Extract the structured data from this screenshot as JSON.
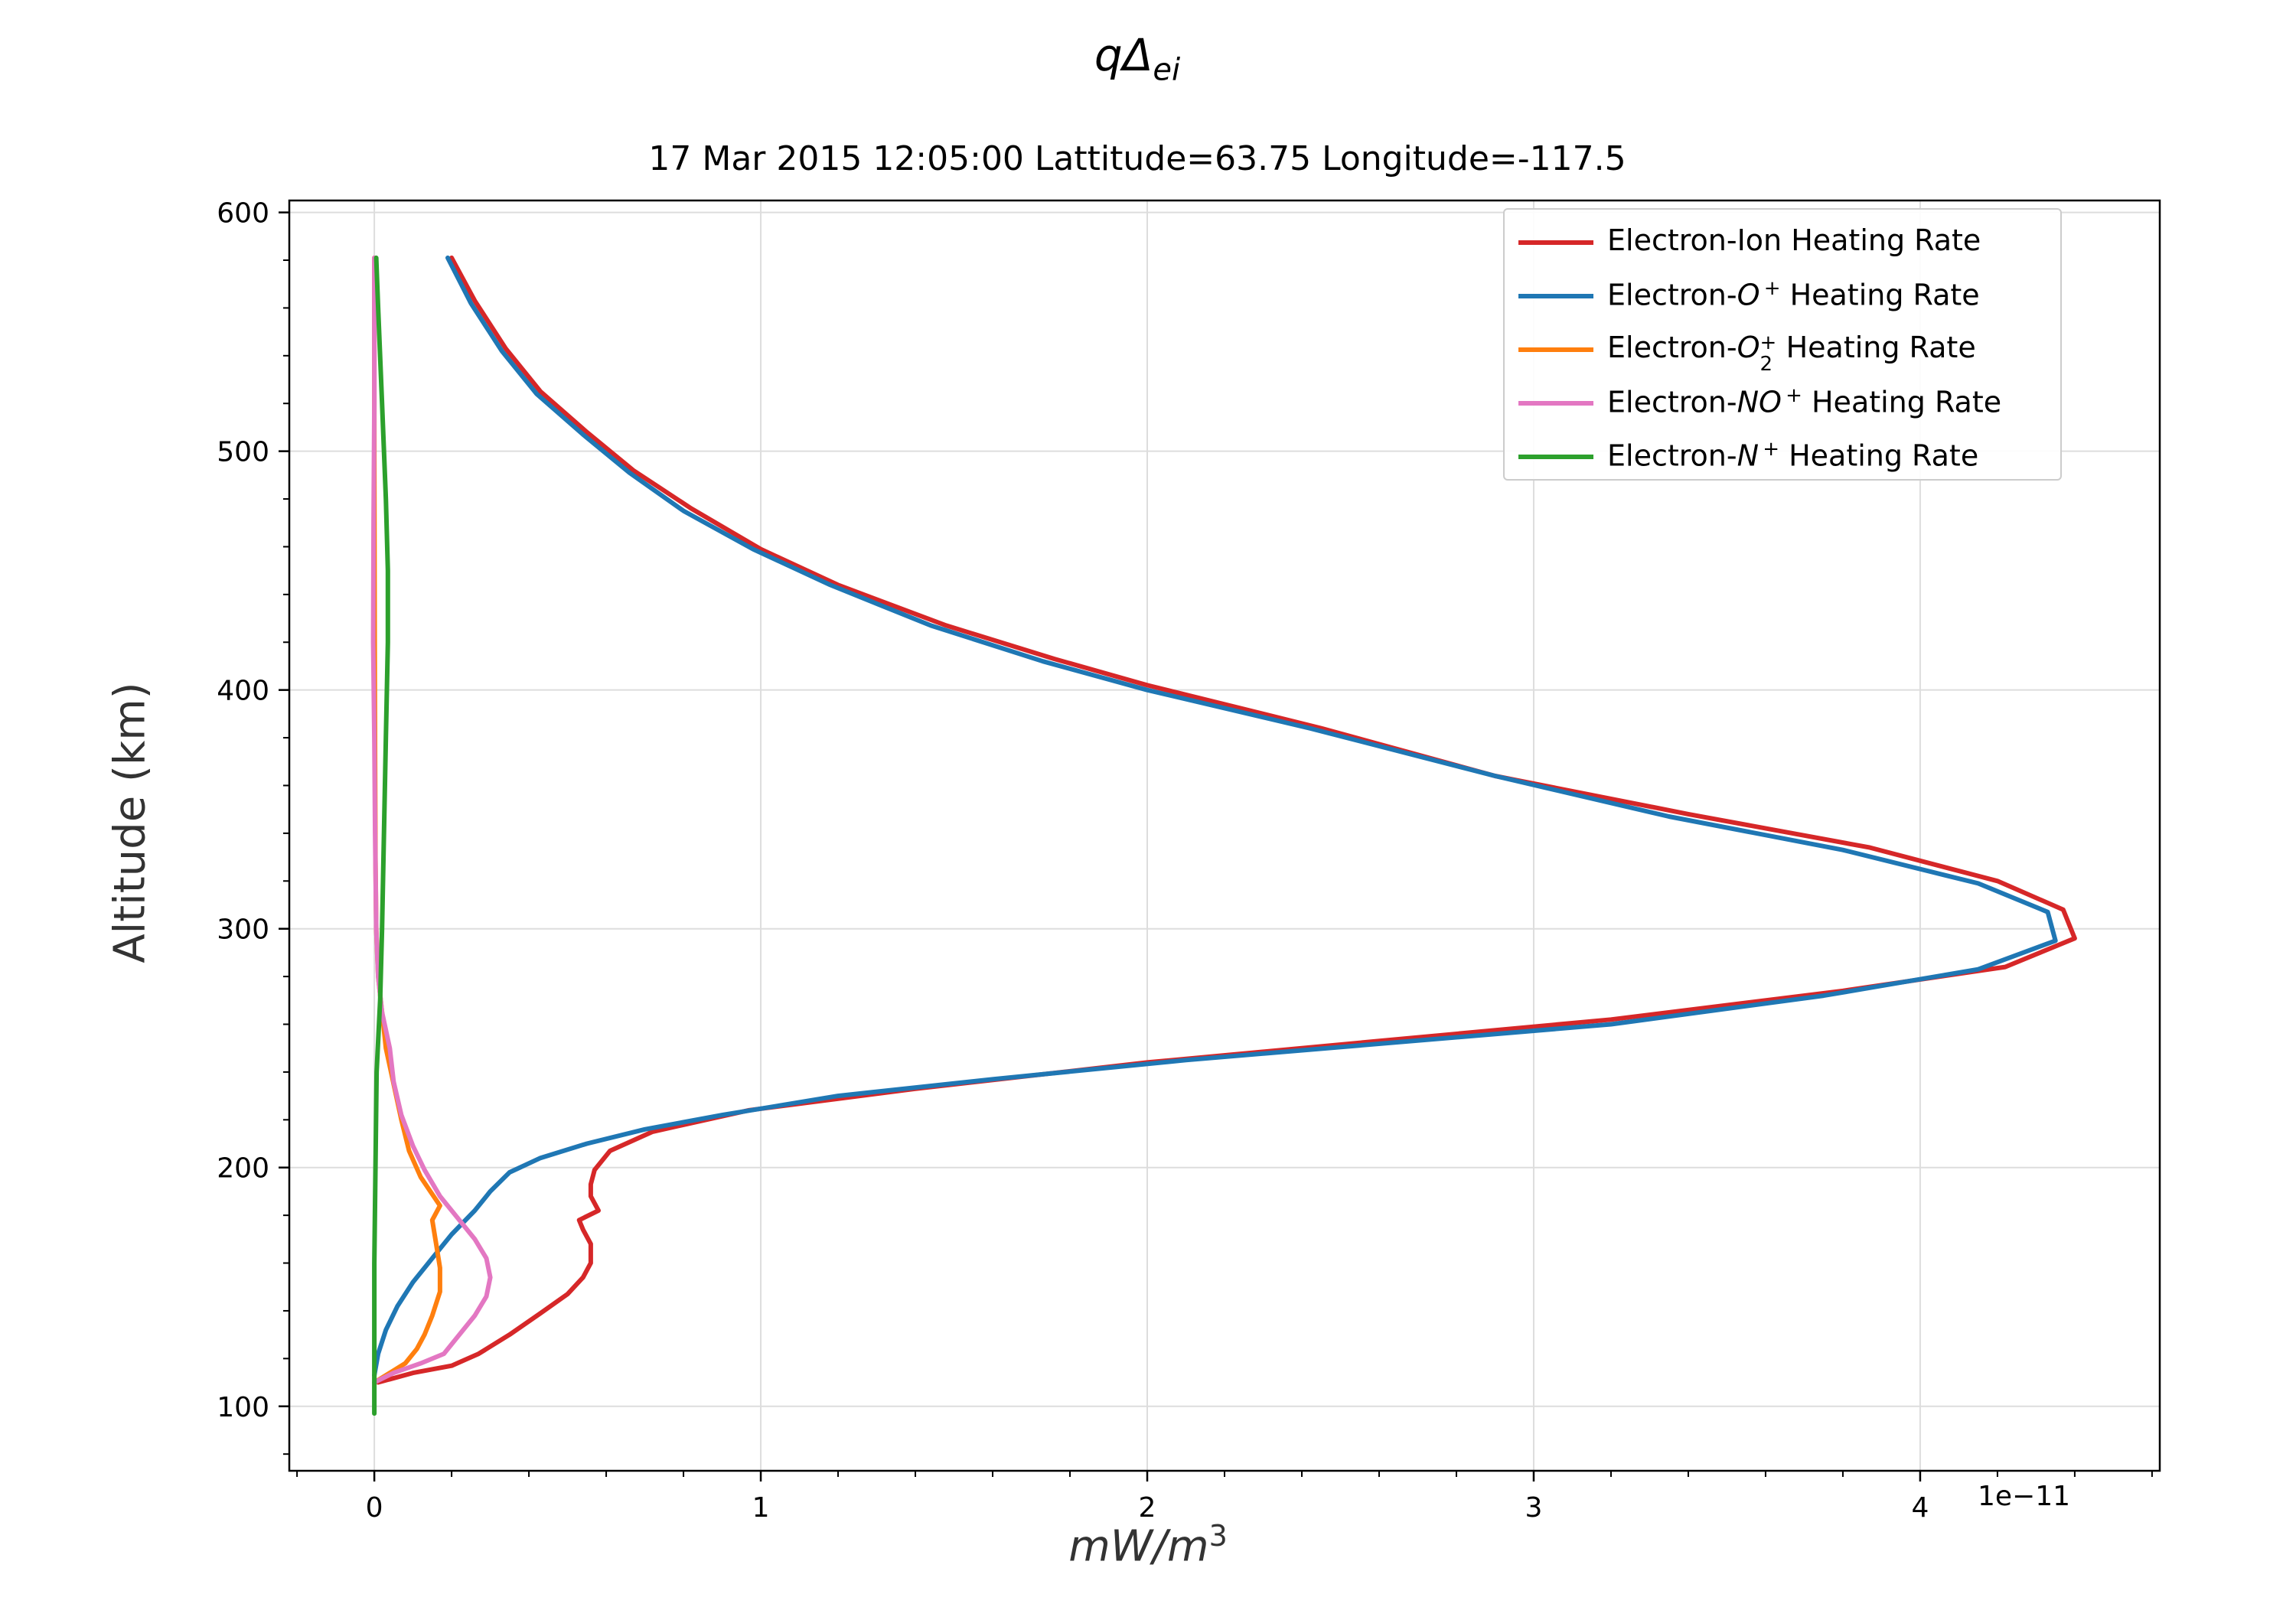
{
  "figure": {
    "suptitle_main": "qΔ",
    "suptitle_sub": "ei",
    "axes_title": "17 Mar 2015 12:05:00 Lattitude=63.75 Longitude=-117.5",
    "offset_text": "1e−11"
  },
  "chart_data": {
    "type": "line",
    "title": "17 Mar 2015 12:05:00 Lattitude=63.75 Longitude=-117.5",
    "xlabel_base": "mW/m",
    "xlabel_exp": "3",
    "ylabel": "Altitude (km)",
    "x_scale_note": "x values ×1e-11",
    "xlim": [
      -0.22,
      4.62
    ],
    "ylim": [
      73,
      605
    ],
    "xticks": [
      0,
      1,
      2,
      3,
      4
    ],
    "xtick_labels": [
      "0",
      "1",
      "2",
      "3",
      "4"
    ],
    "yticks": [
      100,
      200,
      300,
      400,
      500,
      600
    ],
    "ytick_labels": [
      "100",
      "200",
      "300",
      "400",
      "500",
      "600"
    ],
    "grid": true,
    "legend_position": "top-right",
    "series": [
      {
        "name": "Electron-Ion Heating Rate",
        "legend_parts": [
          "Electron-Ion Heating Rate"
        ],
        "color": "#d62728",
        "points": [
          [
            0.01,
            110
          ],
          [
            0.1,
            114
          ],
          [
            0.2,
            117
          ],
          [
            0.27,
            122
          ],
          [
            0.35,
            130
          ],
          [
            0.43,
            139
          ],
          [
            0.5,
            147
          ],
          [
            0.54,
            154
          ],
          [
            0.56,
            160
          ],
          [
            0.56,
            168
          ],
          [
            0.54,
            174
          ],
          [
            0.53,
            178
          ],
          [
            0.58,
            182
          ],
          [
            0.56,
            188
          ],
          [
            0.56,
            193
          ],
          [
            0.57,
            199
          ],
          [
            0.61,
            207
          ],
          [
            0.72,
            215
          ],
          [
            0.97,
            224
          ],
          [
            1.4,
            233
          ],
          [
            2.0,
            244
          ],
          [
            3.2,
            262
          ],
          [
            3.8,
            274
          ],
          [
            4.22,
            284
          ],
          [
            4.4,
            296
          ],
          [
            4.37,
            308
          ],
          [
            4.2,
            320
          ],
          [
            3.87,
            334
          ],
          [
            3.4,
            348
          ],
          [
            2.9,
            364
          ],
          [
            2.45,
            384
          ],
          [
            2.0,
            402
          ],
          [
            1.76,
            413
          ],
          [
            1.48,
            427
          ],
          [
            1.2,
            444
          ],
          [
            1.0,
            459
          ],
          [
            0.82,
            476
          ],
          [
            0.67,
            492
          ],
          [
            0.55,
            508
          ],
          [
            0.43,
            525
          ],
          [
            0.34,
            543
          ],
          [
            0.26,
            563
          ],
          [
            0.2,
            581
          ]
        ]
      },
      {
        "name": "Electron-O+ Heating Rate",
        "legend_parts": [
          "Electron-",
          "O",
          "+",
          " Heating Rate"
        ],
        "color": "#1f77b4",
        "points": [
          [
            0.0,
            113
          ],
          [
            0.01,
            122
          ],
          [
            0.03,
            132
          ],
          [
            0.06,
            142
          ],
          [
            0.1,
            152
          ],
          [
            0.15,
            162
          ],
          [
            0.2,
            172
          ],
          [
            0.26,
            182
          ],
          [
            0.3,
            190
          ],
          [
            0.35,
            198
          ],
          [
            0.43,
            204
          ],
          [
            0.55,
            210
          ],
          [
            0.7,
            216
          ],
          [
            0.9,
            222
          ],
          [
            1.2,
            230
          ],
          [
            1.6,
            237
          ],
          [
            2.1,
            245
          ],
          [
            3.2,
            260
          ],
          [
            3.75,
            272
          ],
          [
            4.15,
            283
          ],
          [
            4.35,
            295
          ],
          [
            4.33,
            307
          ],
          [
            4.15,
            319
          ],
          [
            3.8,
            333
          ],
          [
            3.35,
            347
          ],
          [
            2.9,
            364
          ],
          [
            2.42,
            384
          ],
          [
            2.0,
            400
          ],
          [
            1.73,
            412
          ],
          [
            1.44,
            427
          ],
          [
            1.18,
            444
          ],
          [
            0.98,
            459
          ],
          [
            0.8,
            475
          ],
          [
            0.66,
            491
          ],
          [
            0.54,
            507
          ],
          [
            0.42,
            524
          ],
          [
            0.33,
            542
          ],
          [
            0.25,
            562
          ],
          [
            0.19,
            581
          ]
        ]
      },
      {
        "name": "Electron-O2+ Heating Rate",
        "legend_parts": [
          "Electron-",
          "O",
          "2",
          "+",
          " Heating Rate"
        ],
        "color": "#ff7f0e",
        "points": [
          [
            0.0,
            110
          ],
          [
            0.04,
            114
          ],
          [
            0.08,
            118
          ],
          [
            0.11,
            124
          ],
          [
            0.13,
            130
          ],
          [
            0.15,
            138
          ],
          [
            0.17,
            148
          ],
          [
            0.17,
            158
          ],
          [
            0.16,
            168
          ],
          [
            0.15,
            178
          ],
          [
            0.17,
            184
          ],
          [
            0.12,
            196
          ],
          [
            0.09,
            207
          ],
          [
            0.07,
            220
          ],
          [
            0.05,
            235
          ],
          [
            0.03,
            250
          ],
          [
            0.02,
            265
          ],
          [
            0.01,
            280
          ],
          [
            0.005,
            300
          ],
          [
            0.003,
            330
          ],
          [
            0.002,
            370
          ],
          [
            0.001,
            420
          ],
          [
            0.0,
            500
          ],
          [
            0.0,
            581
          ]
        ]
      },
      {
        "name": "Electron-NO+ Heating Rate",
        "legend_parts": [
          "Electron-",
          "NO",
          "+",
          " Heating Rate"
        ],
        "color": "#e377c2",
        "points": [
          [
            0.0,
            110
          ],
          [
            0.05,
            114
          ],
          [
            0.12,
            118
          ],
          [
            0.18,
            122
          ],
          [
            0.22,
            130
          ],
          [
            0.26,
            138
          ],
          [
            0.29,
            146
          ],
          [
            0.3,
            154
          ],
          [
            0.29,
            162
          ],
          [
            0.26,
            170
          ],
          [
            0.22,
            178
          ],
          [
            0.17,
            188
          ],
          [
            0.13,
            199
          ],
          [
            0.1,
            209
          ],
          [
            0.07,
            222
          ],
          [
            0.05,
            236
          ],
          [
            0.04,
            250
          ],
          [
            0.02,
            265
          ],
          [
            0.01,
            280
          ],
          [
            0.005,
            300
          ],
          [
            0.002,
            340
          ],
          [
            0.0,
            380
          ],
          [
            -0.003,
            420
          ],
          [
            -0.002,
            470
          ],
          [
            0.0,
            520
          ],
          [
            0.0,
            581
          ]
        ]
      },
      {
        "name": "Electron-N+ Heating Rate",
        "legend_parts": [
          "Electron-",
          "N",
          "+",
          " Heating Rate"
        ],
        "color": "#2ca02c",
        "points": [
          [
            0.0,
            97
          ],
          [
            0.0,
            120
          ],
          [
            0.0,
            160
          ],
          [
            0.003,
            200
          ],
          [
            0.006,
            240
          ],
          [
            0.015,
            270
          ],
          [
            0.02,
            300
          ],
          [
            0.025,
            340
          ],
          [
            0.03,
            380
          ],
          [
            0.035,
            420
          ],
          [
            0.035,
            450
          ],
          [
            0.03,
            480
          ],
          [
            0.02,
            520
          ],
          [
            0.01,
            560
          ],
          [
            0.005,
            581
          ]
        ]
      }
    ]
  }
}
